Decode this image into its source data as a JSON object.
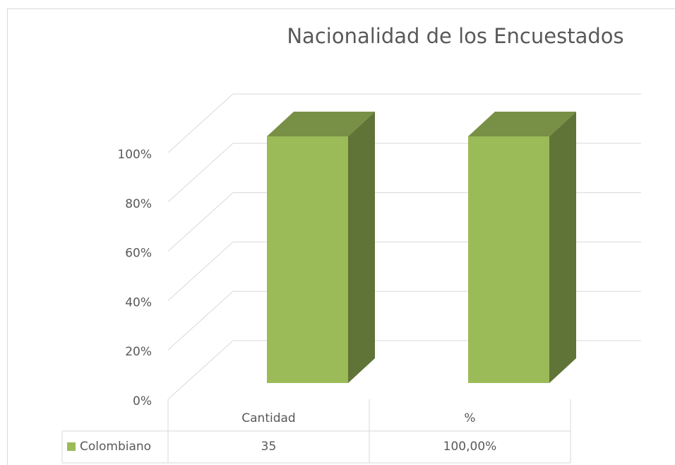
{
  "chart_data": {
    "type": "bar",
    "stacking": "percent",
    "title": "Nacionalidad de los Encuestados",
    "categories": [
      "Cantidad",
      "%"
    ],
    "series": [
      {
        "name": "Colombiano",
        "color": "#9bbb59",
        "values": [
          35,
          100
        ],
        "value_labels": [
          "35",
          "100,00%"
        ]
      }
    ],
    "ylim": [
      0,
      100
    ],
    "yticks": [
      {
        "value": 0,
        "label": "0%"
      },
      {
        "value": 20,
        "label": "20%"
      },
      {
        "value": 40,
        "label": "40%"
      },
      {
        "value": 60,
        "label": "60%"
      },
      {
        "value": 80,
        "label": "80%"
      },
      {
        "value": 100,
        "label": "100%"
      }
    ],
    "grid": true,
    "data_table": true
  }
}
